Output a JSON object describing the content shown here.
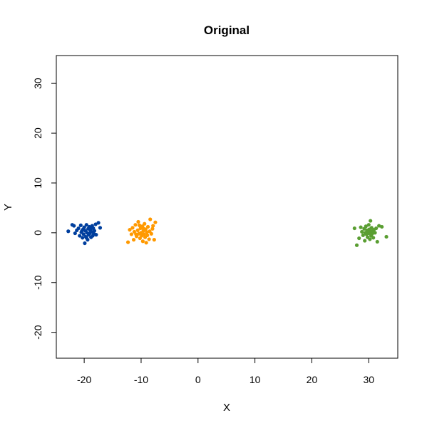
{
  "chart_data": {
    "type": "scatter",
    "title": "Original",
    "xlabel": "X",
    "ylabel": "Y",
    "xlim": [
      -25,
      35
    ],
    "ylim": [
      -25,
      35
    ],
    "xticks": [
      "-20",
      "-10",
      "0",
      "10",
      "20",
      "30"
    ],
    "yticks": [
      "-20",
      "-10",
      "0",
      "10",
      "20",
      "30"
    ],
    "grid": false,
    "legend": false,
    "series": [
      {
        "color": "#003f9e",
        "points": [
          [
            -22.8,
            0.3
          ],
          [
            -22.1,
            1.6
          ],
          [
            -21.8,
            1.4
          ],
          [
            -21.6,
            -0.1
          ],
          [
            -21.3,
            0.5
          ],
          [
            -21.0,
            0.9
          ],
          [
            -20.8,
            -0.6
          ],
          [
            -20.6,
            1.5
          ],
          [
            -20.5,
            0.1
          ],
          [
            -20.3,
            -1.0
          ],
          [
            -20.2,
            0.7
          ],
          [
            -20.1,
            -0.3
          ],
          [
            -20.0,
            1.1
          ],
          [
            -19.9,
            -2.1
          ],
          [
            -19.8,
            0.4
          ],
          [
            -19.7,
            -0.8
          ],
          [
            -19.6,
            1.6
          ],
          [
            -19.5,
            0.0
          ],
          [
            -19.4,
            -1.4
          ],
          [
            -19.3,
            0.8
          ],
          [
            -19.2,
            -0.4
          ],
          [
            -19.1,
            1.2
          ],
          [
            -19.0,
            -0.1
          ],
          [
            -18.9,
            0.5
          ],
          [
            -18.8,
            -0.9
          ],
          [
            -18.7,
            0.2
          ],
          [
            -18.6,
            1.4
          ],
          [
            -18.5,
            -0.6
          ],
          [
            -18.4,
            0.9
          ],
          [
            -18.3,
            -0.2
          ],
          [
            -18.2,
            0.4
          ],
          [
            -18.0,
            1.7
          ],
          [
            -17.9,
            -0.4
          ],
          [
            -17.5,
            2.0
          ],
          [
            -17.2,
            1.0
          ],
          [
            -19.6,
            -1.0
          ],
          [
            -20.4,
            0.4
          ],
          [
            -18.9,
            0.9
          ]
        ]
      },
      {
        "color": "#ff9900",
        "points": [
          [
            -12.3,
            -1.9
          ],
          [
            -12.0,
            0.6
          ],
          [
            -11.7,
            -0.3
          ],
          [
            -11.5,
            1.0
          ],
          [
            -11.3,
            -1.4
          ],
          [
            -11.2,
            0.2
          ],
          [
            -11.0,
            1.6
          ],
          [
            -10.8,
            -0.7
          ],
          [
            -10.6,
            0.5
          ],
          [
            -10.5,
            2.2
          ],
          [
            -10.4,
            -0.2
          ],
          [
            -10.2,
            -1.1
          ],
          [
            -10.1,
            0.9
          ],
          [
            -10.0,
            0.0
          ],
          [
            -9.9,
            -0.6
          ],
          [
            -9.8,
            1.3
          ],
          [
            -9.7,
            -1.7
          ],
          [
            -9.6,
            0.4
          ],
          [
            -9.5,
            -0.3
          ],
          [
            -9.4,
            1.8
          ],
          [
            -9.3,
            -0.9
          ],
          [
            -9.2,
            0.7
          ],
          [
            -9.1,
            -2.0
          ],
          [
            -9.0,
            0.1
          ],
          [
            -8.9,
            -0.5
          ],
          [
            -8.8,
            1.2
          ],
          [
            -8.6,
            -1.3
          ],
          [
            -8.5,
            0.3
          ],
          [
            -8.4,
            2.7
          ],
          [
            -8.2,
            -0.2
          ],
          [
            -8.0,
            0.8
          ],
          [
            -7.9,
            1.4
          ],
          [
            -7.7,
            -1.4
          ],
          [
            -7.5,
            2.1
          ],
          [
            -10.9,
            -0.3
          ],
          [
            -9.6,
            0.9
          ],
          [
            -10.3,
            1.5
          ]
        ]
      },
      {
        "color": "#5a9e32",
        "points": [
          [
            27.5,
            0.9
          ],
          [
            27.9,
            -2.5
          ],
          [
            28.3,
            -1.1
          ],
          [
            28.6,
            1.1
          ],
          [
            28.8,
            0.2
          ],
          [
            29.0,
            -0.5
          ],
          [
            29.2,
            0.8
          ],
          [
            29.3,
            -1.6
          ],
          [
            29.4,
            0.0
          ],
          [
            29.5,
            1.3
          ],
          [
            29.6,
            -0.3
          ],
          [
            29.7,
            0.5
          ],
          [
            29.8,
            -0.9
          ],
          [
            29.9,
            0.3
          ],
          [
            30.0,
            1.6
          ],
          [
            30.0,
            -0.1
          ],
          [
            30.1,
            0.7
          ],
          [
            30.2,
            -1.3
          ],
          [
            30.3,
            2.4
          ],
          [
            30.3,
            0.2
          ],
          [
            30.4,
            -0.6
          ],
          [
            30.5,
            1.0
          ],
          [
            30.6,
            -0.2
          ],
          [
            30.7,
            0.4
          ],
          [
            30.8,
            -1.0
          ],
          [
            30.9,
            0.6
          ],
          [
            31.1,
            0.0
          ],
          [
            31.3,
            0.9
          ],
          [
            31.5,
            -1.8
          ],
          [
            31.8,
            1.4
          ],
          [
            32.3,
            1.2
          ],
          [
            33.1,
            -0.8
          ],
          [
            30.1,
            0.1
          ],
          [
            29.8,
            0.3
          ]
        ]
      }
    ]
  }
}
